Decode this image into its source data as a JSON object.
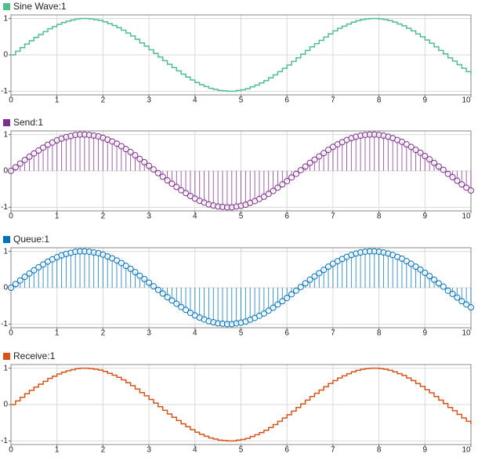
{
  "chart_data": [
    {
      "type": "stairs",
      "series": [
        {
          "name": "Sine Wave:1",
          "color": "#4dbf8f",
          "values": [
            0,
            0.1,
            0.2,
            0.3,
            0.39,
            0.48,
            0.56,
            0.64,
            0.72,
            0.78,
            0.84,
            0.89,
            0.93,
            0.96,
            0.99,
            1,
            1,
            0.99,
            0.97,
            0.95,
            0.91,
            0.86,
            0.81,
            0.75,
            0.68,
            0.6,
            0.52,
            0.43,
            0.33,
            0.24,
            0.14,
            0.04,
            -0.06,
            -0.16,
            -0.26,
            -0.35,
            -0.44,
            -0.53,
            -0.61,
            -0.69,
            -0.76,
            -0.82,
            -0.87,
            -0.92,
            -0.95,
            -0.98,
            -0.99,
            -1,
            -1,
            -0.98,
            -0.96,
            -0.93,
            -0.88,
            -0.83,
            -0.77,
            -0.71,
            -0.63,
            -0.55,
            -0.46,
            -0.37,
            -0.28,
            -0.18,
            -0.08,
            0.02,
            0.12,
            0.22,
            0.31,
            0.4,
            0.49,
            0.58,
            0.66,
            0.73,
            0.79,
            0.85,
            0.9,
            0.94,
            0.97,
            0.99,
            1,
            1,
            0.99,
            0.97,
            0.94,
            0.9,
            0.85,
            0.8,
            0.73,
            0.66,
            0.58,
            0.5,
            0.41,
            0.32,
            0.22,
            0.12,
            0.03,
            -0.08,
            -0.17,
            -0.27,
            -0.37,
            -0.46,
            -0.54
          ]
        }
      ],
      "x": [
        0,
        0.1,
        0.2,
        0.3,
        0.4,
        0.5,
        0.6,
        0.7,
        0.8,
        0.9,
        1,
        1.1,
        1.2,
        1.3,
        1.4,
        1.5,
        1.6,
        1.7,
        1.8,
        1.9,
        2,
        2.1,
        2.2,
        2.3,
        2.4,
        2.5,
        2.6,
        2.7,
        2.8,
        2.9,
        3,
        3.1,
        3.2,
        3.3,
        3.4,
        3.5,
        3.6,
        3.7,
        3.8,
        3.9,
        4,
        4.1,
        4.2,
        4.3,
        4.4,
        4.5,
        4.6,
        4.7,
        4.8,
        4.9,
        5,
        5.1,
        5.2,
        5.3,
        5.4,
        5.5,
        5.6,
        5.7,
        5.8,
        5.9,
        6,
        6.1,
        6.2,
        6.3,
        6.4,
        6.5,
        6.6,
        6.7,
        6.8,
        6.9,
        7,
        7.1,
        7.2,
        7.3,
        7.4,
        7.5,
        7.6,
        7.7,
        7.8,
        7.9,
        8,
        8.1,
        8.2,
        8.3,
        8.4,
        8.5,
        8.6,
        8.7,
        8.8,
        8.9,
        9,
        9.1,
        9.2,
        9.3,
        9.4,
        9.5,
        9.6,
        9.7,
        9.8,
        9.9,
        10
      ],
      "xlim": [
        0,
        10
      ],
      "xticks": [
        0,
        1,
        2,
        3,
        4,
        5,
        6,
        7,
        8,
        9,
        10
      ],
      "ylim": [
        -1.1,
        1.1
      ],
      "yticks": [
        -1,
        0,
        1
      ],
      "grid": true
    },
    {
      "type": "stem",
      "series": [
        {
          "name": "Send:1",
          "color": "#7e2f8e",
          "values": [
            0,
            0.1,
            0.2,
            0.3,
            0.39,
            0.48,
            0.56,
            0.64,
            0.72,
            0.78,
            0.84,
            0.89,
            0.93,
            0.96,
            0.99,
            1,
            1,
            0.99,
            0.97,
            0.95,
            0.91,
            0.86,
            0.81,
            0.75,
            0.68,
            0.6,
            0.52,
            0.43,
            0.33,
            0.24,
            0.14,
            0.04,
            -0.06,
            -0.16,
            -0.26,
            -0.35,
            -0.44,
            -0.53,
            -0.61,
            -0.69,
            -0.76,
            -0.82,
            -0.87,
            -0.92,
            -0.95,
            -0.98,
            -0.99,
            -1,
            -1,
            -0.98,
            -0.96,
            -0.93,
            -0.88,
            -0.83,
            -0.77,
            -0.71,
            -0.63,
            -0.55,
            -0.46,
            -0.37,
            -0.28,
            -0.18,
            -0.08,
            0.02,
            0.12,
            0.22,
            0.31,
            0.4,
            0.49,
            0.58,
            0.66,
            0.73,
            0.79,
            0.85,
            0.9,
            0.94,
            0.97,
            0.99,
            1,
            1,
            0.99,
            0.97,
            0.94,
            0.9,
            0.85,
            0.8,
            0.73,
            0.66,
            0.58,
            0.5,
            0.41,
            0.32,
            0.22,
            0.12,
            0.03,
            -0.08,
            -0.17,
            -0.27,
            -0.37,
            -0.46,
            -0.54
          ]
        }
      ],
      "x": [
        0,
        0.1,
        0.2,
        0.3,
        0.4,
        0.5,
        0.6,
        0.7,
        0.8,
        0.9,
        1,
        1.1,
        1.2,
        1.3,
        1.4,
        1.5,
        1.6,
        1.7,
        1.8,
        1.9,
        2,
        2.1,
        2.2,
        2.3,
        2.4,
        2.5,
        2.6,
        2.7,
        2.8,
        2.9,
        3,
        3.1,
        3.2,
        3.3,
        3.4,
        3.5,
        3.6,
        3.7,
        3.8,
        3.9,
        4,
        4.1,
        4.2,
        4.3,
        4.4,
        4.5,
        4.6,
        4.7,
        4.8,
        4.9,
        5,
        5.1,
        5.2,
        5.3,
        5.4,
        5.5,
        5.6,
        5.7,
        5.8,
        5.9,
        6,
        6.1,
        6.2,
        6.3,
        6.4,
        6.5,
        6.6,
        6.7,
        6.8,
        6.9,
        7,
        7.1,
        7.2,
        7.3,
        7.4,
        7.5,
        7.6,
        7.7,
        7.8,
        7.9,
        8,
        8.1,
        8.2,
        8.3,
        8.4,
        8.5,
        8.6,
        8.7,
        8.8,
        8.9,
        9,
        9.1,
        9.2,
        9.3,
        9.4,
        9.5,
        9.6,
        9.7,
        9.8,
        9.9,
        10
      ],
      "xlim": [
        0,
        10
      ],
      "xticks": [
        0,
        1,
        2,
        3,
        4,
        5,
        6,
        7,
        8,
        9,
        10
      ],
      "ylim": [
        -1.1,
        1.1
      ],
      "yticks": [
        -1,
        0,
        1
      ],
      "grid": true
    },
    {
      "type": "stem",
      "series": [
        {
          "name": "Queue:1",
          "color": "#0072bd",
          "values": [
            0,
            0.1,
            0.2,
            0.3,
            0.39,
            0.48,
            0.56,
            0.64,
            0.72,
            0.78,
            0.84,
            0.89,
            0.93,
            0.96,
            0.99,
            1,
            1,
            0.99,
            0.97,
            0.95,
            0.91,
            0.86,
            0.81,
            0.75,
            0.68,
            0.6,
            0.52,
            0.43,
            0.33,
            0.24,
            0.14,
            0.04,
            -0.06,
            -0.16,
            -0.26,
            -0.35,
            -0.44,
            -0.53,
            -0.61,
            -0.69,
            -0.76,
            -0.82,
            -0.87,
            -0.92,
            -0.95,
            -0.98,
            -0.99,
            -1,
            -1,
            -0.98,
            -0.96,
            -0.93,
            -0.88,
            -0.83,
            -0.77,
            -0.71,
            -0.63,
            -0.55,
            -0.46,
            -0.37,
            -0.28,
            -0.18,
            -0.08,
            0.02,
            0.12,
            0.22,
            0.31,
            0.4,
            0.49,
            0.58,
            0.66,
            0.73,
            0.79,
            0.85,
            0.9,
            0.94,
            0.97,
            0.99,
            1,
            1,
            0.99,
            0.97,
            0.94,
            0.9,
            0.85,
            0.8,
            0.73,
            0.66,
            0.58,
            0.5,
            0.41,
            0.32,
            0.22,
            0.12,
            0.03,
            -0.08,
            -0.17,
            -0.27,
            -0.37,
            -0.46,
            -0.54
          ]
        }
      ],
      "x": [
        0,
        0.1,
        0.2,
        0.3,
        0.4,
        0.5,
        0.6,
        0.7,
        0.8,
        0.9,
        1,
        1.1,
        1.2,
        1.3,
        1.4,
        1.5,
        1.6,
        1.7,
        1.8,
        1.9,
        2,
        2.1,
        2.2,
        2.3,
        2.4,
        2.5,
        2.6,
        2.7,
        2.8,
        2.9,
        3,
        3.1,
        3.2,
        3.3,
        3.4,
        3.5,
        3.6,
        3.7,
        3.8,
        3.9,
        4,
        4.1,
        4.2,
        4.3,
        4.4,
        4.5,
        4.6,
        4.7,
        4.8,
        4.9,
        5,
        5.1,
        5.2,
        5.3,
        5.4,
        5.5,
        5.6,
        5.7,
        5.8,
        5.9,
        6,
        6.1,
        6.2,
        6.3,
        6.4,
        6.5,
        6.6,
        6.7,
        6.8,
        6.9,
        7,
        7.1,
        7.2,
        7.3,
        7.4,
        7.5,
        7.6,
        7.7,
        7.8,
        7.9,
        8,
        8.1,
        8.2,
        8.3,
        8.4,
        8.5,
        8.6,
        8.7,
        8.8,
        8.9,
        9,
        9.1,
        9.2,
        9.3,
        9.4,
        9.5,
        9.6,
        9.7,
        9.8,
        9.9,
        10
      ],
      "xlim": [
        0,
        10
      ],
      "xticks": [
        0,
        1,
        2,
        3,
        4,
        5,
        6,
        7,
        8,
        9,
        10
      ],
      "ylim": [
        -1.1,
        1.1
      ],
      "yticks": [
        -1,
        0,
        1
      ],
      "grid": true
    },
    {
      "type": "stairs",
      "series": [
        {
          "name": "Receive:1",
          "color": "#d95319",
          "values": [
            0,
            0.1,
            0.2,
            0.3,
            0.39,
            0.48,
            0.56,
            0.64,
            0.72,
            0.78,
            0.84,
            0.89,
            0.93,
            0.96,
            0.99,
            1,
            1,
            0.99,
            0.97,
            0.95,
            0.91,
            0.86,
            0.81,
            0.75,
            0.68,
            0.6,
            0.52,
            0.43,
            0.33,
            0.24,
            0.14,
            0.04,
            -0.06,
            -0.16,
            -0.26,
            -0.35,
            -0.44,
            -0.53,
            -0.61,
            -0.69,
            -0.76,
            -0.82,
            -0.87,
            -0.92,
            -0.95,
            -0.98,
            -0.99,
            -1,
            -1,
            -0.98,
            -0.96,
            -0.93,
            -0.88,
            -0.83,
            -0.77,
            -0.71,
            -0.63,
            -0.55,
            -0.46,
            -0.37,
            -0.28,
            -0.18,
            -0.08,
            0.02,
            0.12,
            0.22,
            0.31,
            0.4,
            0.49,
            0.58,
            0.66,
            0.73,
            0.79,
            0.85,
            0.9,
            0.94,
            0.97,
            0.99,
            1,
            1,
            0.99,
            0.97,
            0.94,
            0.9,
            0.85,
            0.8,
            0.73,
            0.66,
            0.58,
            0.5,
            0.41,
            0.32,
            0.22,
            0.12,
            0.03,
            -0.08,
            -0.17,
            -0.27,
            -0.37,
            -0.46,
            -0.54
          ]
        }
      ],
      "x": [
        0,
        0.1,
        0.2,
        0.3,
        0.4,
        0.5,
        0.6,
        0.7,
        0.8,
        0.9,
        1,
        1.1,
        1.2,
        1.3,
        1.4,
        1.5,
        1.6,
        1.7,
        1.8,
        1.9,
        2,
        2.1,
        2.2,
        2.3,
        2.4,
        2.5,
        2.6,
        2.7,
        2.8,
        2.9,
        3,
        3.1,
        3.2,
        3.3,
        3.4,
        3.5,
        3.6,
        3.7,
        3.8,
        3.9,
        4,
        4.1,
        4.2,
        4.3,
        4.4,
        4.5,
        4.6,
        4.7,
        4.8,
        4.9,
        5,
        5.1,
        5.2,
        5.3,
        5.4,
        5.5,
        5.6,
        5.7,
        5.8,
        5.9,
        6,
        6.1,
        6.2,
        6.3,
        6.4,
        6.5,
        6.6,
        6.7,
        6.8,
        6.9,
        7,
        7.1,
        7.2,
        7.3,
        7.4,
        7.5,
        7.6,
        7.7,
        7.8,
        7.9,
        8,
        8.1,
        8.2,
        8.3,
        8.4,
        8.5,
        8.6,
        8.7,
        8.8,
        8.9,
        9,
        9.1,
        9.2,
        9.3,
        9.4,
        9.5,
        9.6,
        9.7,
        9.8,
        9.9,
        10
      ],
      "xlim": [
        0,
        10
      ],
      "xticks": [
        0,
        1,
        2,
        3,
        4,
        5,
        6,
        7,
        8,
        9,
        10
      ],
      "ylim": [
        -1.1,
        1.1
      ],
      "yticks": [
        -1,
        0,
        1
      ],
      "grid": true
    }
  ]
}
